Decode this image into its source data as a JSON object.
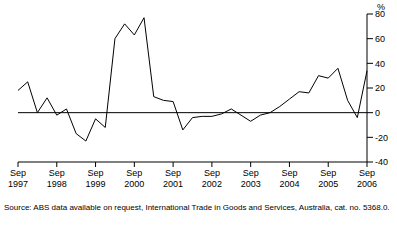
{
  "chart_data": {
    "type": "line",
    "y_label": "%",
    "annotations": [
      "Source: ABS data available on request, International Trade in Goods and Services, Australia, cat. no. 5368.0."
    ],
    "categories": [
      "Sep 1997",
      null,
      null,
      null,
      "Sep 1998",
      null,
      null,
      null,
      "Sep 1999",
      null,
      null,
      null,
      "Sep 2000",
      null,
      null,
      null,
      "Sep 2001",
      null,
      null,
      null,
      "Sep 2002",
      null,
      null,
      null,
      "Sep 2003",
      null,
      null,
      null,
      "Sep 2004",
      null,
      null,
      null,
      "Sep 2005",
      null,
      null,
      null,
      "Sep 2006"
    ],
    "values": [
      18,
      25,
      0,
      12,
      -2,
      3,
      -17,
      -23,
      -5,
      -12,
      60,
      72,
      63,
      77,
      13,
      10,
      9,
      -14,
      -4,
      -3,
      -3,
      -1,
      3,
      -2,
      -7,
      -2,
      0,
      5,
      11,
      17,
      16,
      30,
      28,
      36,
      10,
      -4,
      34
    ],
    "color": "#000000",
    "ylim": [
      -40,
      80
    ],
    "yticks": [
      -40,
      -20,
      0,
      20,
      40,
      60,
      80
    ],
    "grid": false
  }
}
